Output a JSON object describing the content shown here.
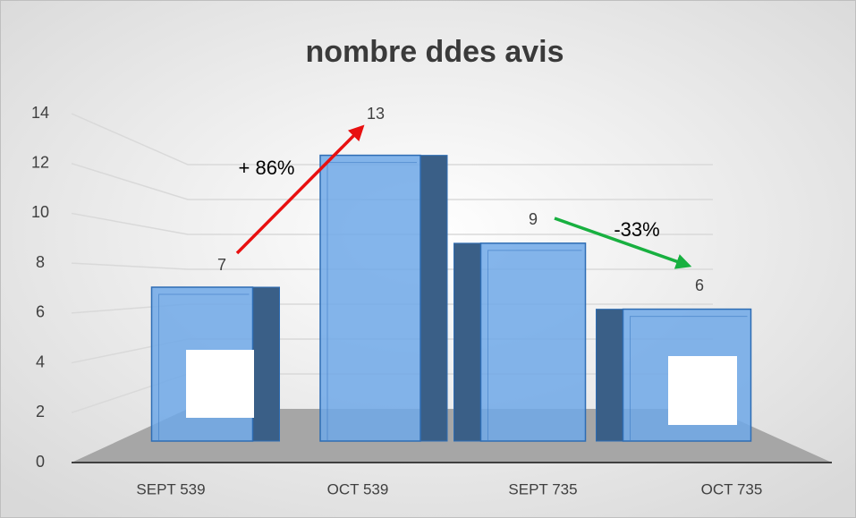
{
  "chart_data": {
    "type": "bar",
    "title": "nombre ddes avis",
    "categories": [
      "SEPT 539",
      "OCT 539",
      "SEPT 735",
      "OCT 735"
    ],
    "values": [
      7,
      13,
      9,
      6
    ],
    "color": "#6fa8e8",
    "ylim": [
      0,
      14
    ],
    "yticks": [
      0,
      2,
      4,
      6,
      8,
      10,
      12,
      14
    ],
    "grid": true,
    "annotations": [
      {
        "text": "+ 86%",
        "color": "#e81010"
      },
      {
        "text": "-33%",
        "color": "#18b040"
      }
    ]
  }
}
